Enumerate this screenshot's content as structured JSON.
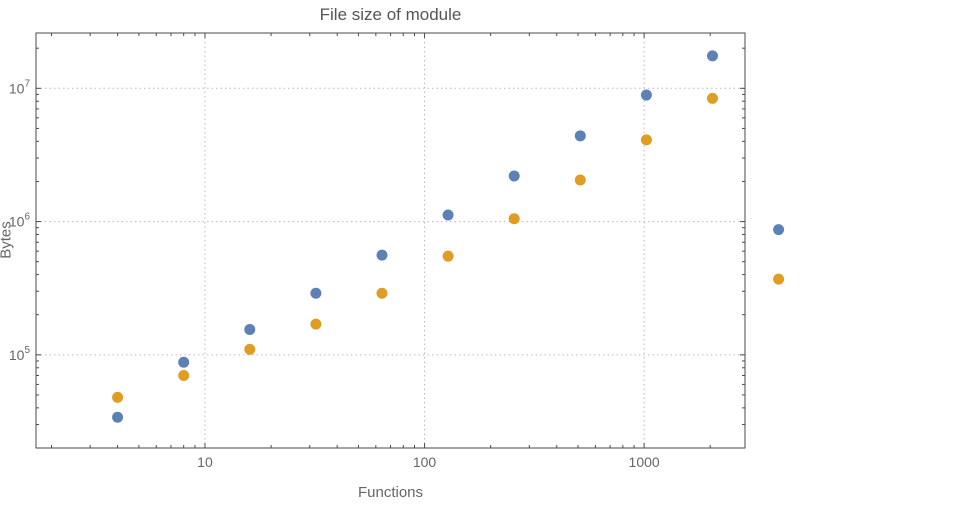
{
  "chart_data": {
    "type": "scatter",
    "title": "File size of module",
    "xlabel": "Functions",
    "ylabel": "Bytes",
    "x_scale": "log",
    "y_scale": "log",
    "grid": true,
    "legend": "none",
    "frame": true,
    "xlim": [
      1.7,
      2880
    ],
    "ylim": [
      20000,
      26000000
    ],
    "x_tick_values": [
      10,
      100,
      1000
    ],
    "x_tick_labels": [
      "10",
      "100",
      "1000"
    ],
    "y_tick_values": [
      100000,
      1000000,
      10000000
    ],
    "y_tick_labels": [
      "10^5",
      "10^6",
      "10^7"
    ],
    "x": [
      4,
      8,
      16,
      32,
      64,
      128,
      256,
      512,
      1024,
      2048,
      4096
    ],
    "series": [
      {
        "name": "blue",
        "color": "#5e81b5",
        "values": [
          34000,
          88000,
          155000,
          290000,
          560000,
          1120000,
          2200000,
          4400000,
          8900000,
          17500000,
          870000
        ]
      },
      {
        "name": "orange",
        "color": "#e19c24",
        "values": [
          48000,
          70000,
          110000,
          170000,
          290000,
          550000,
          1050000,
          2050000,
          4100000,
          8400000,
          370000
        ]
      }
    ],
    "style": {
      "grid_color": "#b9b9b9",
      "frame_color": "#4a4a4a",
      "text_color": "#666666",
      "title_color": "#555555",
      "point_radius": 5.5
    }
  }
}
